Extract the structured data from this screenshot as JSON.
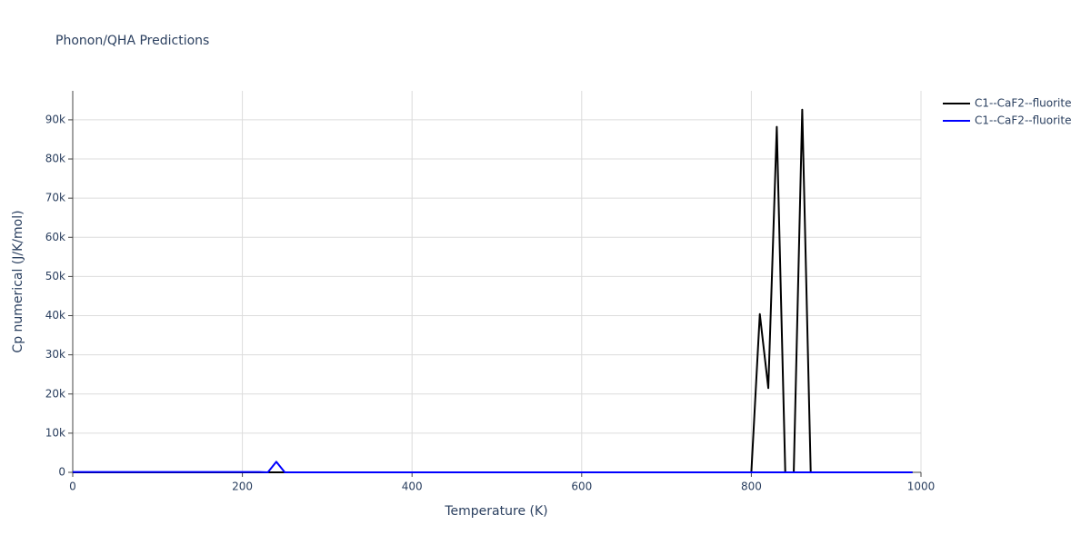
{
  "chart_data": {
    "type": "line",
    "title": "Phonon/QHA Predictions",
    "x_label": "Temperature (K)",
    "y_label": "Cp numerical (J/K/mol)",
    "x": [
      0,
      10,
      20,
      30,
      40,
      50,
      60,
      70,
      80,
      90,
      100,
      110,
      120,
      130,
      140,
      150,
      160,
      170,
      180,
      190,
      200,
      210,
      220,
      230,
      240,
      250,
      260,
      270,
      280,
      290,
      300,
      310,
      320,
      330,
      340,
      350,
      360,
      370,
      380,
      390,
      400,
      410,
      420,
      430,
      440,
      450,
      460,
      470,
      480,
      490,
      500,
      510,
      520,
      530,
      540,
      550,
      560,
      570,
      580,
      590,
      600,
      610,
      620,
      630,
      640,
      650,
      660,
      670,
      680,
      690,
      700,
      710,
      720,
      730,
      740,
      750,
      760,
      770,
      780,
      790,
      800,
      810,
      820,
      830,
      840,
      850,
      860,
      870,
      880,
      890,
      900,
      910,
      920,
      930,
      940,
      950,
      960,
      970,
      980,
      990
    ],
    "series": [
      {
        "name": "C1--CaF2--fluorite",
        "color": "#000000",
        "values": [
          0,
          0,
          0,
          0,
          0,
          0,
          0,
          0,
          0,
          0,
          0,
          0,
          0,
          0,
          0,
          0,
          0,
          0,
          0,
          0,
          0,
          0,
          0,
          0,
          0,
          0,
          0,
          0,
          0,
          0,
          0,
          0,
          0,
          0,
          0,
          0,
          0,
          0,
          0,
          0,
          0,
          0,
          0,
          0,
          0,
          0,
          0,
          0,
          0,
          0,
          0,
          0,
          0,
          0,
          0,
          0,
          0,
          0,
          0,
          0,
          0,
          0,
          0,
          0,
          0,
          0,
          0,
          0,
          0,
          0,
          0,
          0,
          0,
          0,
          0,
          0,
          0,
          0,
          0,
          0,
          0,
          40400,
          21500,
          88200,
          0,
          0,
          92600,
          0,
          0,
          0,
          0,
          0,
          0,
          0,
          0,
          0,
          0,
          0,
          0,
          0
        ]
      },
      {
        "name": "C1--CaF2--fluorite",
        "color": "#0000ff",
        "values": [
          100,
          100,
          100,
          100,
          100,
          100,
          100,
          100,
          100,
          100,
          100,
          100,
          100,
          100,
          100,
          100,
          100,
          100,
          100,
          100,
          100,
          100,
          100,
          0,
          2700,
          0,
          0,
          0,
          0,
          0,
          0,
          0,
          0,
          0,
          0,
          0,
          0,
          0,
          0,
          0,
          0,
          0,
          0,
          0,
          0,
          0,
          0,
          0,
          0,
          0,
          0,
          0,
          0,
          0,
          0,
          0,
          0,
          0,
          0,
          0,
          0,
          0,
          0,
          0,
          0,
          0,
          0,
          0,
          0,
          0,
          0,
          0,
          0,
          0,
          0,
          0,
          0,
          0,
          0,
          0,
          0,
          0,
          0,
          0,
          0,
          0,
          0,
          0,
          0,
          0,
          0,
          0,
          0,
          0,
          0,
          0,
          0,
          0,
          0,
          0
        ]
      }
    ],
    "xlim": [
      0,
      1000
    ],
    "xticks": [
      0,
      200,
      400,
      600,
      800,
      1000
    ],
    "ylim": [
      0,
      97400
    ],
    "yticks": [
      0,
      {
        "value": 10000,
        "label": "10k"
      },
      {
        "value": 20000,
        "label": "20k"
      },
      {
        "value": 30000,
        "label": "30k"
      },
      {
        "value": 40000,
        "label": "40k"
      },
      {
        "value": 50000,
        "label": "50k"
      },
      {
        "value": 60000,
        "label": "60k"
      },
      {
        "value": 70000,
        "label": "70k"
      },
      {
        "value": 80000,
        "label": "80k"
      },
      {
        "value": 90000,
        "label": "90k"
      }
    ],
    "grid": true,
    "legend": "right"
  }
}
